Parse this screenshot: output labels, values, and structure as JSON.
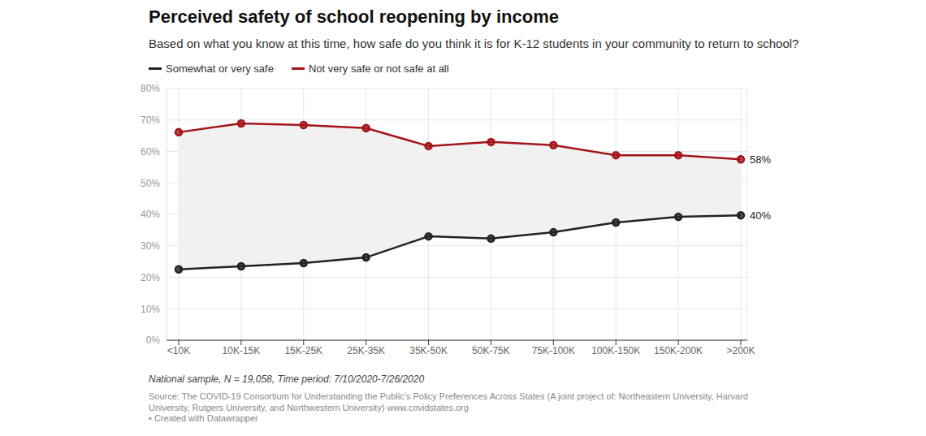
{
  "chart_data": {
    "type": "line",
    "title": "Perceived safety of school reopening by income",
    "subtitle": "Based on what you know at this time, how safe do you think it is for K-12 students in your community to return to school?",
    "categories": [
      "<10K",
      "10K-15K",
      "15K-25K",
      "25K-35K",
      "35K-50K",
      "50K-75K",
      "75K-100K",
      "100K-150K",
      "150K-200K",
      ">200K"
    ],
    "series": [
      {
        "name": "Somewhat or very safe",
        "color": "#222222",
        "marker": "circle",
        "values": [
          22.5,
          23.5,
          24.5,
          26.3,
          33,
          32.3,
          34.3,
          37.4,
          39.2,
          39.7
        ]
      },
      {
        "name": "Not very safe or not safe at all",
        "color": "#a3151b",
        "marker": "circle",
        "values": [
          66.1,
          68.9,
          68.4,
          67.4,
          61.7,
          63,
          62,
          58.8,
          58.8,
          57.5
        ]
      }
    ],
    "ylim": [
      0,
      80
    ],
    "yticks": [
      {
        "value": 0,
        "label": "0%"
      },
      {
        "value": 10,
        "label": "10%"
      },
      {
        "value": 20,
        "label": "20%"
      },
      {
        "value": 30,
        "label": "30%"
      },
      {
        "value": 40,
        "label": "40%"
      },
      {
        "value": 50,
        "label": "50%"
      },
      {
        "value": 60,
        "label": "60%"
      },
      {
        "value": 70,
        "label": "70%"
      },
      {
        "value": 80,
        "label": "80%"
      }
    ],
    "grid": true,
    "annotations": [
      {
        "series": "Not very safe or not safe at all",
        "category": ">200K",
        "text": "58%"
      },
      {
        "series": "Somewhat or very safe",
        "category": ">200K",
        "text": "40%"
      }
    ],
    "note": "National sample, N = 19,058, Time period: 7/10/2020-7/26/2020",
    "source": "Source: The COVID-19 Consortium for Understanding the Public’s Policy Preferences Across States (A joint project of: Northeastern University, Harvard University, Rutgers University, and Northwestern University) www.covidstates.org",
    "credit": "• Created with Datawrapper"
  }
}
